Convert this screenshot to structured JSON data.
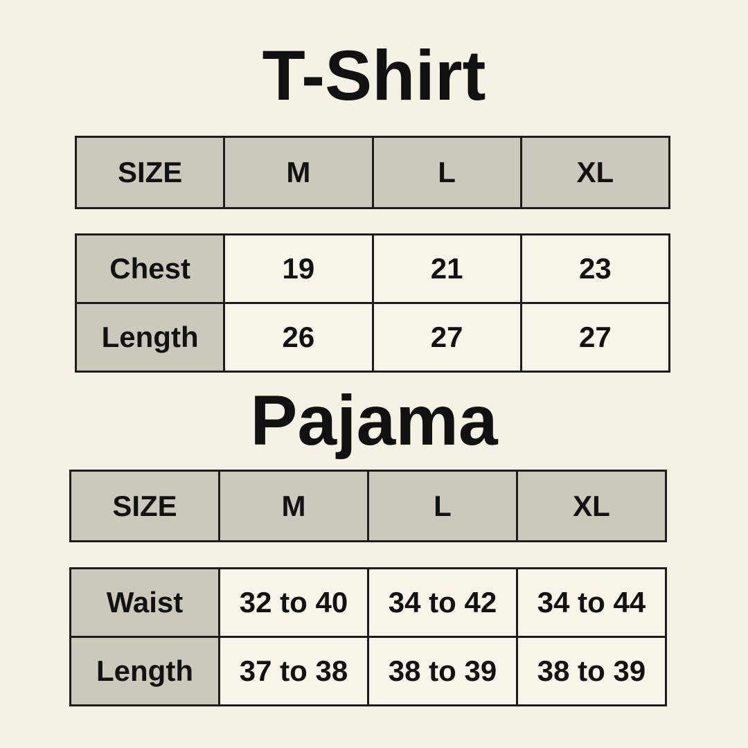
{
  "theme": {
    "page_background": "#F5F1E4",
    "header_cell_background": "#CCC8BB",
    "value_cell_background": "#F8F4E9",
    "border_color": "#1C1C1C",
    "text_color": "#121212"
  },
  "sections": [
    {
      "title": "T-Shirt",
      "size_header": [
        "SIZE",
        "M",
        "L",
        "XL"
      ],
      "rows": [
        {
          "label": "Chest",
          "values": [
            "19",
            "21",
            "23"
          ]
        },
        {
          "label": "Length",
          "values": [
            "26",
            "27",
            "27"
          ]
        }
      ]
    },
    {
      "title": "Pajama",
      "size_header": [
        "SIZE",
        "M",
        "L",
        "XL"
      ],
      "rows": [
        {
          "label": "Waist",
          "values": [
            "32 to 40",
            "34 to 42",
            "34 to 44"
          ]
        },
        {
          "label": "Length",
          "values": [
            "37 to 38",
            "38 to 39",
            "38 to 39"
          ]
        }
      ]
    }
  ],
  "chart_data": [
    {
      "type": "table",
      "title": "T-Shirt",
      "columns": [
        "SIZE",
        "M",
        "L",
        "XL"
      ],
      "rows": [
        [
          "Chest",
          19,
          21,
          23
        ],
        [
          "Length",
          26,
          27,
          27
        ]
      ]
    },
    {
      "type": "table",
      "title": "Pajama",
      "columns": [
        "SIZE",
        "M",
        "L",
        "XL"
      ],
      "rows": [
        [
          "Waist",
          "32 to 40",
          "34 to 42",
          "34 to 44"
        ],
        [
          "Length",
          "37 to 38",
          "38 to 39",
          "38 to 39"
        ]
      ]
    }
  ]
}
